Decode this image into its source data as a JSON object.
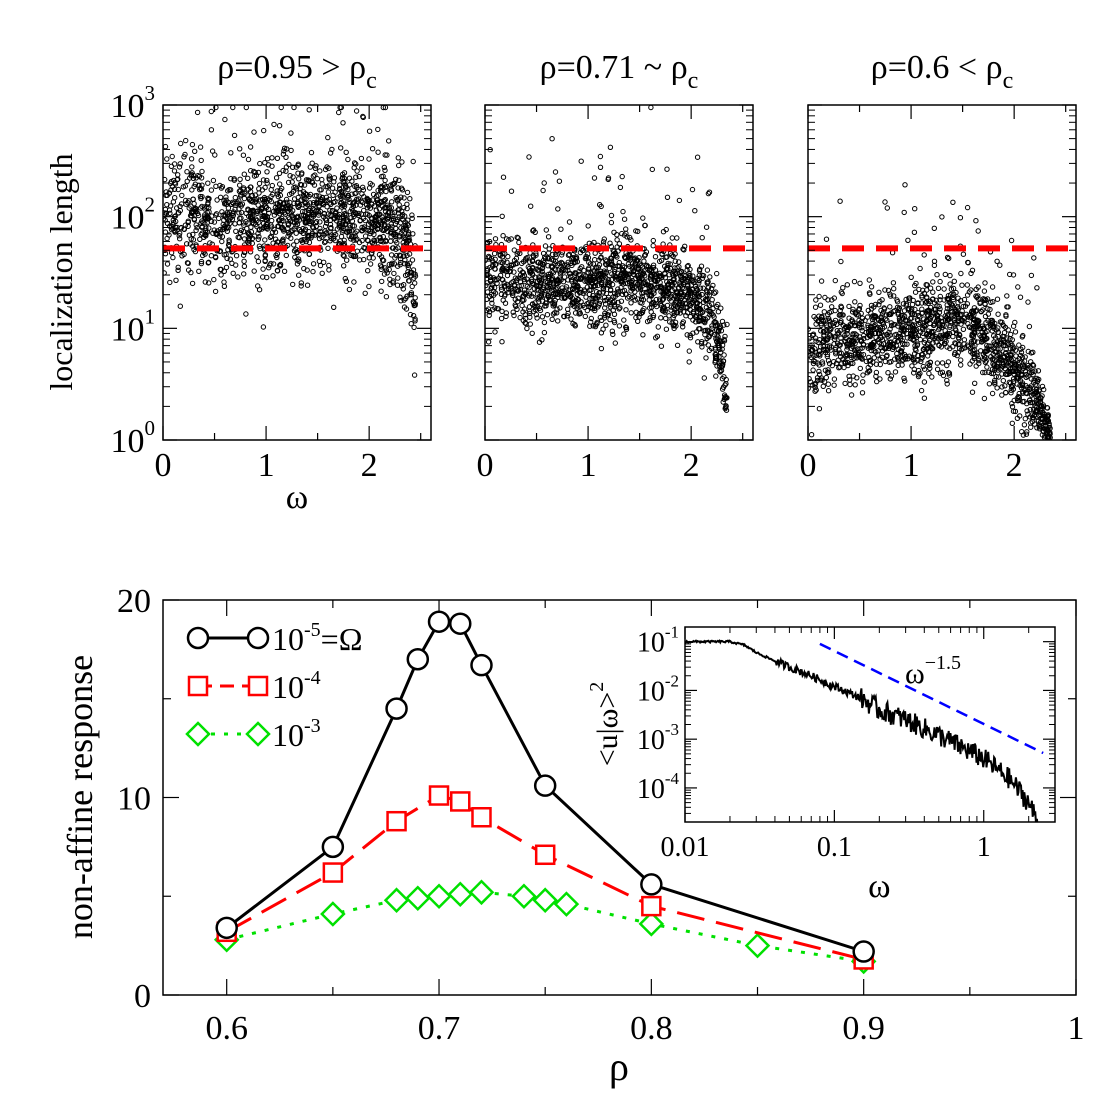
{
  "figure": {
    "panel_titles": [
      {
        "base": "ρ=0.95 > ρ",
        "sub": "c"
      },
      {
        "base": "ρ=0.71 ~ ρ",
        "sub": "c"
      },
      {
        "base": "ρ=0.6 < ρ",
        "sub": "c"
      }
    ],
    "top_ylabel": "localization length",
    "top_xlabel": "ω",
    "bottom_ylabel": "non-affine response",
    "bottom_xlabel": "ρ",
    "inset_xlabel": "ω",
    "inset_ylabel": "<u|ω>",
    "inset_ylabel_sup": "2",
    "inset_annotation_base": "ω",
    "inset_annotation_exp": "−1.5",
    "colors": {
      "black": "#000000",
      "red": "#ff0000",
      "green": "#00e000",
      "blue": "#0000ff"
    }
  },
  "chart_data": [
    {
      "type": "scatter",
      "panel": "top-left",
      "title": "ρ=0.95 > ρc",
      "xlabel": "ω",
      "ylabel": "localization length",
      "xlim": [
        0,
        2.6
      ],
      "ylim": [
        1,
        1000
      ],
      "yscale": "log",
      "xticks": [
        0,
        1,
        2
      ],
      "yticks": [
        "10^0",
        "10^1",
        "10^2",
        "10^3"
      ],
      "reference_line": {
        "y": 52,
        "style": "dashed",
        "color": "#ff0000"
      },
      "cloud_profile": [
        {
          "x": 0.0,
          "median": 110,
          "spread": 0.3
        },
        {
          "x": 0.5,
          "median": 80,
          "spread": 0.25
        },
        {
          "x": 1.0,
          "median": 90,
          "spread": 0.25
        },
        {
          "x": 1.5,
          "median": 110,
          "spread": 0.25
        },
        {
          "x": 2.0,
          "median": 95,
          "spread": 0.25
        },
        {
          "x": 2.3,
          "median": 80,
          "spread": 0.25
        },
        {
          "x": 2.45,
          "median": 12,
          "spread": 0.3
        }
      ]
    },
    {
      "type": "scatter",
      "panel": "top-middle",
      "title": "ρ=0.71 ~ ρc",
      "xlim": [
        0,
        2.6
      ],
      "ylim": [
        1,
        1000
      ],
      "yscale": "log",
      "xticks": [
        0,
        1,
        2
      ],
      "reference_line": {
        "y": 52,
        "style": "dashed",
        "color": "#ff0000"
      },
      "cloud_profile": [
        {
          "x": 0.0,
          "median": 28,
          "spread": 0.22
        },
        {
          "x": 0.5,
          "median": 25,
          "spread": 0.2
        },
        {
          "x": 1.0,
          "median": 26,
          "spread": 0.2
        },
        {
          "x": 1.5,
          "median": 27,
          "spread": 0.2
        },
        {
          "x": 2.0,
          "median": 20,
          "spread": 0.2
        },
        {
          "x": 2.2,
          "median": 12,
          "spread": 0.2
        },
        {
          "x": 2.35,
          "median": 2,
          "spread": 0.2
        }
      ]
    },
    {
      "type": "scatter",
      "panel": "top-right",
      "title": "ρ=0.6 < ρc",
      "xlim": [
        0,
        2.6
      ],
      "ylim": [
        1,
        1000
      ],
      "yscale": "log",
      "xticks": [
        0,
        1,
        2
      ],
      "reference_line": {
        "y": 52,
        "style": "dashed",
        "color": "#ff0000"
      },
      "cloud_profile": [
        {
          "x": 0.0,
          "median": 4,
          "spread": 0.25
        },
        {
          "x": 0.2,
          "median": 8,
          "spread": 0.2
        },
        {
          "x": 0.6,
          "median": 9,
          "spread": 0.2
        },
        {
          "x": 1.0,
          "median": 9,
          "spread": 0.2
        },
        {
          "x": 1.5,
          "median": 12,
          "spread": 0.22
        },
        {
          "x": 1.8,
          "median": 7,
          "spread": 0.2
        },
        {
          "x": 2.1,
          "median": 3,
          "spread": 0.2
        },
        {
          "x": 2.35,
          "median": 1.1,
          "spread": 0.1
        }
      ]
    },
    {
      "type": "line",
      "panel": "bottom",
      "xlabel": "ρ",
      "ylabel": "non-affine response",
      "xlim": [
        0.57,
        1.0
      ],
      "ylim": [
        0,
        20
      ],
      "xticks": [
        0.6,
        0.7,
        0.8,
        0.9,
        1
      ],
      "xtick_labels": [
        "0.6",
        "0.7",
        "0.8",
        "0.9",
        "1"
      ],
      "yticks": [
        0,
        10,
        20
      ],
      "ytick_labels": [
        "0",
        "10",
        "20"
      ],
      "legend_position": "top-left",
      "series": [
        {
          "name": "10^-5=Ω",
          "label_base": "10",
          "label_exp": "-5",
          "label_suffix": "=Ω",
          "color": "#000000",
          "marker": "circle",
          "dash": "solid",
          "x": [
            0.6,
            0.65,
            0.68,
            0.69,
            0.7,
            0.71,
            0.72,
            0.75,
            0.8,
            0.9
          ],
          "y": [
            3.4,
            7.5,
            14.5,
            17.0,
            18.9,
            18.8,
            16.7,
            10.6,
            5.6,
            2.2
          ]
        },
        {
          "name": "10^-4",
          "label_base": "10",
          "label_exp": "-4",
          "label_suffix": "",
          "color": "#ff0000",
          "marker": "square",
          "dash": "long-dash",
          "x": [
            0.6,
            0.65,
            0.68,
            0.7,
            0.71,
            0.72,
            0.75,
            0.8,
            0.9
          ],
          "y": [
            3.2,
            6.2,
            8.8,
            10.1,
            9.8,
            9.0,
            7.1,
            4.5,
            1.8
          ]
        },
        {
          "name": "10^-3",
          "label_base": "10",
          "label_exp": "-3",
          "label_suffix": "",
          "color": "#00e000",
          "marker": "diamond",
          "dash": "dotted",
          "x": [
            0.6,
            0.65,
            0.68,
            0.69,
            0.7,
            0.71,
            0.72,
            0.74,
            0.75,
            0.76,
            0.8,
            0.85,
            0.9
          ],
          "y": [
            2.8,
            4.1,
            4.8,
            4.9,
            5.0,
            5.1,
            5.2,
            5.0,
            4.8,
            4.6,
            3.6,
            2.5,
            1.7
          ]
        }
      ]
    },
    {
      "type": "line",
      "panel": "inset",
      "xlabel": "ω",
      "ylabel": "<u|ω>^2",
      "xscale": "log",
      "yscale": "log",
      "xlim": [
        0.01,
        3
      ],
      "ylim": [
        2e-05,
        0.2
      ],
      "xtick_labels": [
        "0.01",
        "0.1",
        "1"
      ],
      "ytick_labels": [
        "10^-1",
        "10^-2",
        "10^-3",
        "10^-4"
      ],
      "series": [
        {
          "name": "",
          "color": "#000000",
          "x": [
            0.01,
            0.015,
            0.02,
            0.025,
            0.03,
            0.04,
            0.05,
            0.07,
            0.1,
            0.15,
            0.2,
            0.3,
            0.5,
            0.7,
            1.0,
            1.5,
            2.0,
            2.3
          ],
          "y": [
            0.1,
            0.1,
            0.1,
            0.085,
            0.06,
            0.04,
            0.03,
            0.02,
            0.012,
            0.007,
            0.004,
            0.0025,
            0.0012,
            0.0007,
            0.0004,
            0.00015,
            5e-05,
            2e-05
          ]
        },
        {
          "name": "ω^-1.5",
          "color": "#0000ff",
          "dash": "dashed",
          "x": [
            0.08,
            2.5
          ],
          "y": [
            0.09,
            0.00052
          ]
        }
      ]
    }
  ]
}
